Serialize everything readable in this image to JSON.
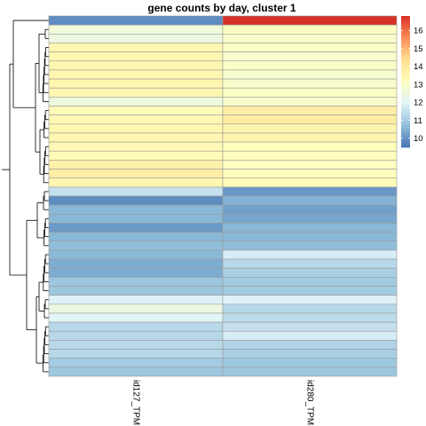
{
  "chart_data": {
    "type": "heatmap",
    "title": "gene counts by day, cluster 1",
    "columns": [
      "id127_TPM",
      "id280_TPM"
    ],
    "color_scale": {
      "min": 9.5,
      "max": 16.8,
      "ticks": [
        10,
        11,
        12,
        13,
        14,
        15,
        16
      ],
      "colors": [
        "#4575b4",
        "#91bfdb",
        "#e0f3f8",
        "#ffffbf",
        "#fee090",
        "#fc8d59",
        "#d73027"
      ]
    },
    "dendrogram": "rows-left",
    "rows": [
      [
        9.9,
        16.8
      ],
      [
        12.6,
        13.1
      ],
      [
        12.4,
        12.9
      ],
      [
        13.5,
        13.0
      ],
      [
        13.5,
        12.9
      ],
      [
        13.5,
        13.0
      ],
      [
        13.5,
        12.8
      ],
      [
        13.5,
        12.9
      ],
      [
        13.5,
        13.0
      ],
      [
        12.5,
        12.9
      ],
      [
        13.3,
        13.8
      ],
      [
        13.4,
        13.9
      ],
      [
        13.5,
        13.6
      ],
      [
        13.5,
        13.6
      ],
      [
        13.4,
        13.2
      ],
      [
        13.3,
        13.2
      ],
      [
        13.7,
        13.1
      ],
      [
        13.8,
        13.2
      ],
      [
        13.5,
        13.3
      ],
      [
        11.5,
        10.1
      ],
      [
        9.9,
        10.5
      ],
      [
        10.6,
        10.2
      ],
      [
        10.6,
        10.3
      ],
      [
        10.1,
        10.6
      ],
      [
        10.6,
        10.6
      ],
      [
        10.7,
        10.7
      ],
      [
        10.6,
        11.8
      ],
      [
        10.4,
        11.3
      ],
      [
        10.4,
        11.1
      ],
      [
        10.9,
        11.0
      ],
      [
        10.9,
        11.0
      ],
      [
        11.9,
        11.9
      ],
      [
        12.4,
        11.3
      ],
      [
        12.0,
        11.4
      ],
      [
        11.3,
        11.5
      ],
      [
        11.3,
        11.8
      ],
      [
        11.3,
        11.2
      ],
      [
        11.3,
        11.1
      ],
      [
        11.0,
        10.9
      ],
      [
        10.9,
        10.9
      ]
    ]
  }
}
